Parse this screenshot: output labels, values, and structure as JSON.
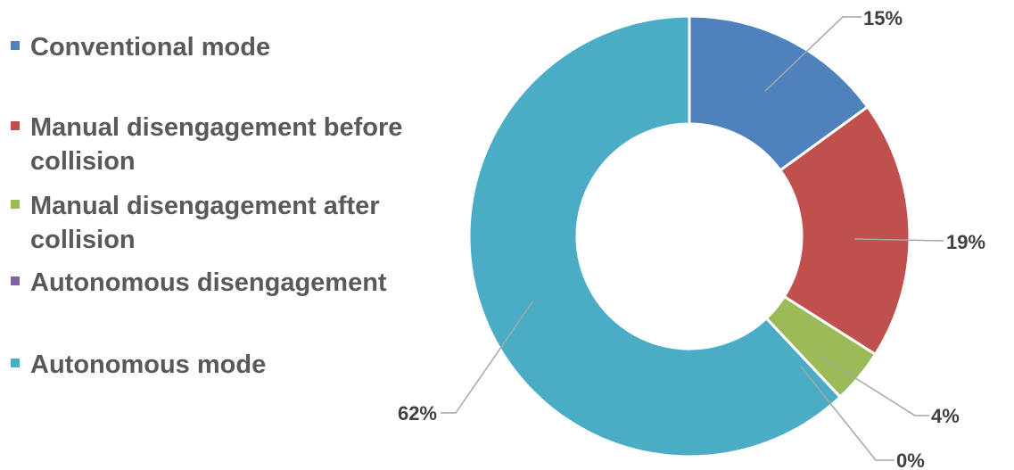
{
  "chart_data": {
    "type": "pie",
    "variant": "donut",
    "legend_position": "left",
    "categories": [
      "Conventional mode",
      "Manual disengagement before collision",
      "Manual disengagement after collision",
      "Autonomous disengagement",
      "Autonomous mode"
    ],
    "values": [
      15,
      19,
      4,
      0,
      62
    ],
    "labels": [
      "15%",
      "19%",
      "4%",
      "0%",
      "62%"
    ],
    "colors": [
      "#4f81bd",
      "#c0504d",
      "#9bbb59",
      "#8064a2",
      "#4bacc6"
    ]
  }
}
